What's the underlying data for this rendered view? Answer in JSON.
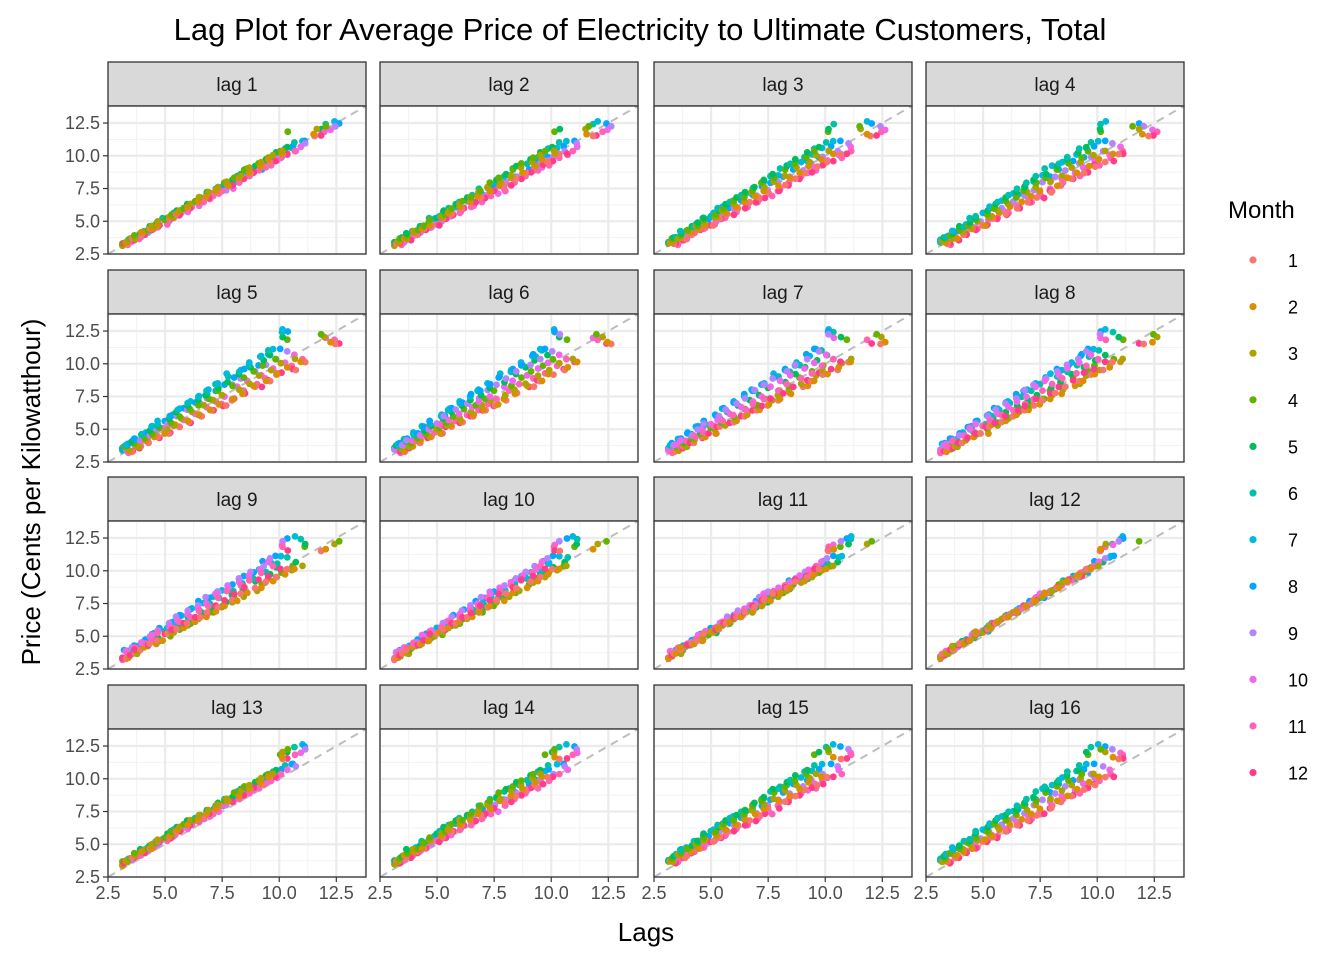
{
  "chart_data": {
    "type": "scatter",
    "title": "Lag Plot for Average Price of Electricity to Ultimate Customers, Total",
    "xlabel": "Lags",
    "ylabel": "Price (Cents per Kilowatthour)",
    "xlim": [
      2.5,
      13.8
    ],
    "ylim": [
      2.5,
      13.8
    ],
    "x_ticks": [
      "2.5",
      "5.0",
      "7.5",
      "10.0",
      "12.5"
    ],
    "y_ticks": [
      "2.5",
      "5.0",
      "7.5",
      "10.0",
      "12.5"
    ],
    "facets": [
      "lag 1",
      "lag 2",
      "lag 3",
      "lag 4",
      "lag 5",
      "lag 6",
      "lag 7",
      "lag 8",
      "lag 9",
      "lag 10",
      "lag 11",
      "lag 12",
      "lag 13",
      "lag 14",
      "lag 15",
      "lag 16"
    ],
    "grid": true,
    "reference_line": "y = x (dashed, gray)",
    "legend": {
      "title": "Month",
      "position": "right",
      "labels": [
        "1",
        "2",
        "3",
        "4",
        "5",
        "6",
        "7",
        "8",
        "9",
        "10",
        "11",
        "12"
      ],
      "colors": [
        "#F8766D",
        "#DB8E00",
        "#AEA200",
        "#64B200",
        "#00BD5C",
        "#00C1A7",
        "#00BADE",
        "#00A6FF",
        "#B385FF",
        "#EF67EB",
        "#FF63B6",
        "#FF3D8B"
      ]
    },
    "series_note": "Each panel plots price (y) against price lagged k months (x), points colored by month 1-12; all points lie close to the y = x line, spanning roughly 3.2 to 13.3."
  }
}
